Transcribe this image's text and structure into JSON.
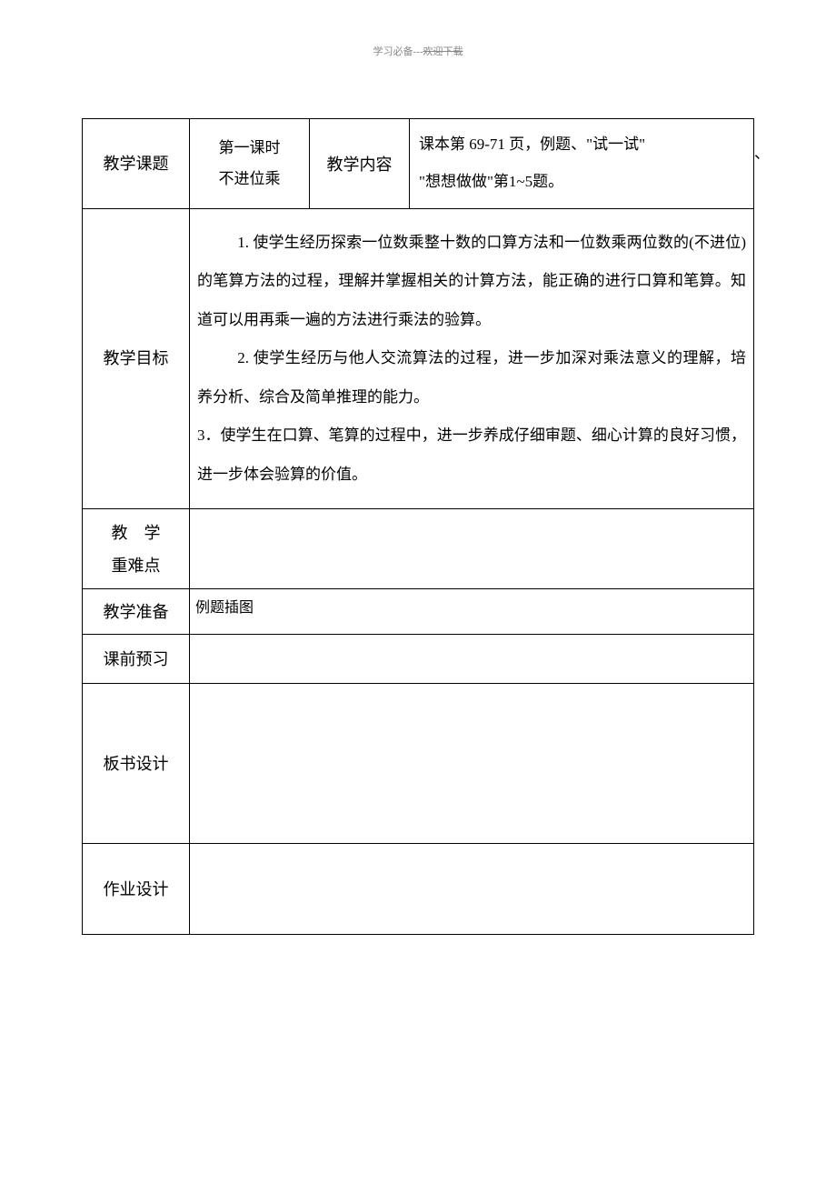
{
  "header": {
    "left": "学习必备",
    "sep": "---",
    "right": "欢迎下载"
  },
  "rows": {
    "r1": {
      "label": "教学课题",
      "col2_line1": "第一课时",
      "col2_line2": "不进位乘",
      "col3": "教学内容",
      "col4_line1": "课本第 69-71 页，例题、\"试一试\"",
      "col4_line2": "\"想想做做\"第1~5题。",
      "overflow": "、"
    },
    "r2": {
      "label": "教学目标",
      "p1": "1. 使学生经历探索一位数乘整十数的口算方法和一位数乘两位数的(不进位)的笔算方法的过程，理解并掌握相关的计算方法，能正确的进行口算和笔算。知道可以用再乘一遍的方法进行乘法的验算。",
      "p2": "2. 使学生经历与他人交流算法的过程，进一步加深对乘法意义的理解，培养分析、综合及简单推理的能力。",
      "p3": "3．使学生在口算、笔算的过程中，进一步养成仔细审题、细心计算的良好习惯，进一步体会验算的价值。"
    },
    "r3": {
      "label_line1": "教　学",
      "label_line2": "重难点"
    },
    "r4": {
      "label": "教学准备",
      "content": "例题插图"
    },
    "r5": {
      "label": "课前预习"
    },
    "r6": {
      "label": "板书设计"
    },
    "r7": {
      "label": "作业设计"
    }
  }
}
